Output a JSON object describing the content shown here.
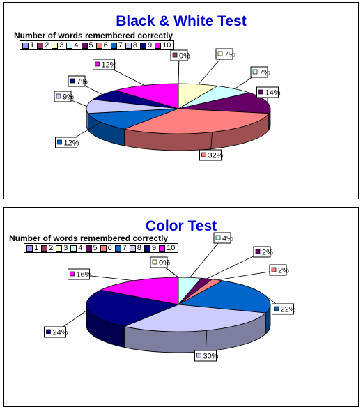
{
  "chart_data": [
    {
      "type": "pie",
      "title": "Black & White Test",
      "subtitle": "Number of words remembered correctly",
      "legend": [
        "1",
        "2",
        "3",
        "4",
        "5",
        "6",
        "7",
        "8",
        "9",
        "10"
      ],
      "labels": [
        "1",
        "2",
        "3",
        "4",
        "5",
        "6",
        "7",
        "8",
        "9",
        "10"
      ],
      "values": [
        0,
        0,
        7,
        7,
        14,
        32,
        12,
        9,
        7,
        12
      ],
      "value_labels": [
        "0%",
        "0%",
        "7%",
        "7%",
        "14%",
        "32%",
        "12%",
        "9%",
        "7%",
        "12%"
      ],
      "legend_placement": "top-left"
    },
    {
      "type": "pie",
      "title": "Color Test",
      "subtitle": "Number of words remembered correctly",
      "legend": [
        "1",
        "2",
        "3",
        "4",
        "5",
        "6",
        "7",
        "8",
        "9",
        "10"
      ],
      "labels": [
        "1",
        "2",
        "3",
        "4",
        "5",
        "6",
        "7",
        "8",
        "9",
        "10"
      ],
      "values": [
        0,
        0,
        0,
        4,
        2,
        2,
        22,
        30,
        24,
        16
      ],
      "value_labels": [
        "0%",
        "0%",
        "0%",
        "4%",
        "2%",
        "2%",
        "22%",
        "30%",
        "24%",
        "16%"
      ],
      "legend_placement": "top-left"
    }
  ],
  "colors": [
    "#9999ff",
    "#993366",
    "#ffffcc",
    "#ccffff",
    "#660066",
    "#ff8080",
    "#0066cc",
    "#ccccff",
    "#000080",
    "#ff00ff"
  ]
}
